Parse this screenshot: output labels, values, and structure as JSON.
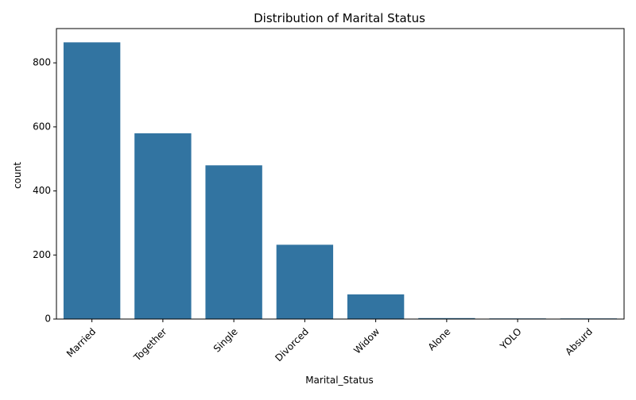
{
  "chart_data": {
    "type": "bar",
    "title": "Distribution of Marital Status",
    "xlabel": "Marital_Status",
    "ylabel": "count",
    "categories": [
      "Married",
      "Together",
      "Single",
      "Divorced",
      "Widow",
      "Alone",
      "YOLO",
      "Absurd"
    ],
    "values": [
      864,
      580,
      480,
      232,
      77,
      3,
      2,
      2
    ],
    "ylim": [
      0,
      907
    ],
    "yticks": [
      0,
      200,
      400,
      600,
      800
    ],
    "bar_color": "#3274a1",
    "grid": false,
    "legend": "none"
  }
}
